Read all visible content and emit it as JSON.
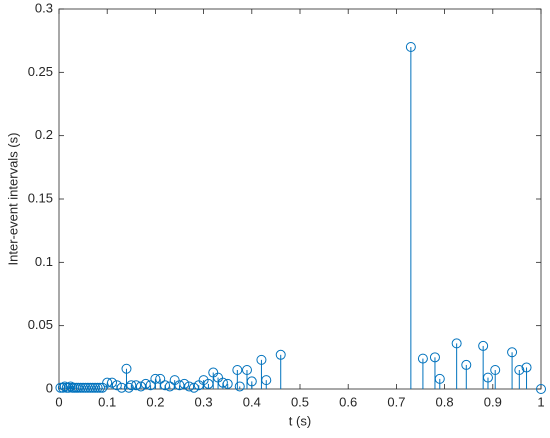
{
  "chart_data": {
    "type": "stem",
    "xlabel": "t (s)",
    "ylabel": "Inter-event intervals (s)",
    "color": "#0072bd",
    "x": [
      0.003,
      0.008,
      0.012,
      0.016,
      0.02,
      0.024,
      0.028,
      0.032,
      0.036,
      0.04,
      0.045,
      0.05,
      0.055,
      0.06,
      0.065,
      0.07,
      0.075,
      0.08,
      0.085,
      0.09,
      0.1,
      0.11,
      0.12,
      0.13,
      0.14,
      0.145,
      0.15,
      0.16,
      0.17,
      0.18,
      0.19,
      0.2,
      0.21,
      0.22,
      0.23,
      0.24,
      0.25,
      0.26,
      0.27,
      0.28,
      0.29,
      0.3,
      0.31,
      0.32,
      0.33,
      0.34,
      0.35,
      0.37,
      0.375,
      0.39,
      0.4,
      0.42,
      0.43,
      0.46,
      0.73,
      0.755,
      0.78,
      0.79,
      0.825,
      0.845,
      0.88,
      0.89,
      0.905,
      0.94,
      0.955,
      0.97,
      1.0
    ],
    "values": [
      0.001,
      0.001,
      0.002,
      0.001,
      0.001,
      0.002,
      0.001,
      0.001,
      0.001,
      0.001,
      0.001,
      0.001,
      0.001,
      0.001,
      0.001,
      0.001,
      0.001,
      0.001,
      0.001,
      0.001,
      0.005,
      0.005,
      0.003,
      0.001,
      0.016,
      0.001,
      0.003,
      0.003,
      0.002,
      0.004,
      0.003,
      0.008,
      0.008,
      0.003,
      0.002,
      0.007,
      0.003,
      0.004,
      0.002,
      0.001,
      0.003,
      0.007,
      0.004,
      0.013,
      0.009,
      0.005,
      0.004,
      0.015,
      0.002,
      0.015,
      0.006,
      0.023,
      0.007,
      0.027,
      0.27,
      0.024,
      0.025,
      0.008,
      0.036,
      0.019,
      0.034,
      0.009,
      0.015,
      0.029,
      0.015,
      0.017,
      0
    ],
    "xlim": [
      0,
      1
    ],
    "xticks": [
      0,
      0.1,
      0.2,
      0.3,
      0.4,
      0.5,
      0.6,
      0.7,
      0.8,
      0.9,
      1
    ],
    "ylim": [
      0,
      0.3
    ],
    "yticks": [
      0,
      0.05,
      0.1,
      0.15,
      0.2,
      0.25,
      0.3
    ]
  }
}
